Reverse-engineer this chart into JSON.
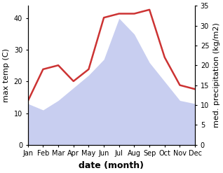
{
  "months": [
    "Jan",
    "Feb",
    "Mar",
    "Apr",
    "May",
    "Jun",
    "Jul",
    "Aug",
    "Sep",
    "Oct",
    "Nov",
    "Dec"
  ],
  "max_temp": [
    13,
    11,
    14,
    18,
    22,
    27,
    40,
    35,
    26,
    20,
    14,
    13
  ],
  "precipitation": [
    11,
    19,
    20,
    16,
    19,
    32,
    33,
    33,
    34,
    22,
    15,
    14
  ],
  "temp_color": "#c8cef0",
  "precip_color": "#cc3333",
  "precip_linewidth": 1.8,
  "ylabel_left": "max temp (C)",
  "ylabel_right": "med. precipitation (kg/m2)",
  "xlabel": "date (month)",
  "ylim_left": [
    0,
    44
  ],
  "ylim_right": [
    0,
    35
  ],
  "yticks_left": [
    0,
    10,
    20,
    30,
    40
  ],
  "yticks_right": [
    0,
    5,
    10,
    15,
    20,
    25,
    30,
    35
  ],
  "background_color": "#ffffff",
  "label_fontsize": 8,
  "tick_fontsize": 7,
  "xlabel_fontsize": 9
}
